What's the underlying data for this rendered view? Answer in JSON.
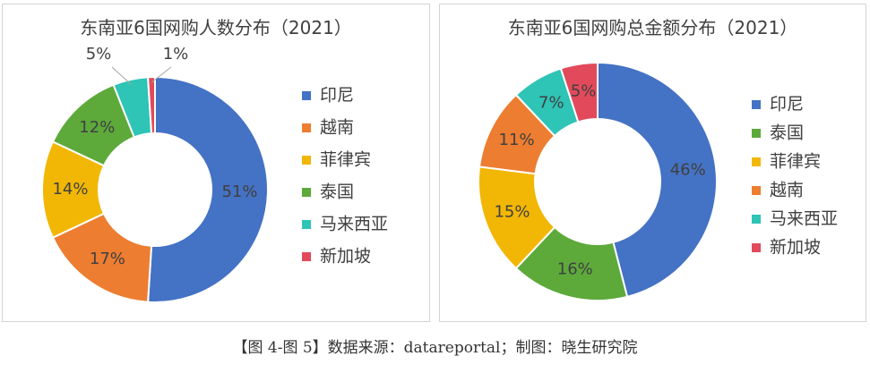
{
  "chart_data": [
    {
      "type": "pie",
      "donut": true,
      "title": "东南亚6国网购人数分布（2021）",
      "categories": [
        "印尼",
        "越南",
        "菲律宾",
        "泰国",
        "马来西亚",
        "新加坡"
      ],
      "values": [
        51,
        17,
        14,
        12,
        5,
        1
      ],
      "value_labels": [
        "51%",
        "17%",
        "14%",
        "12%",
        "5%",
        "1%"
      ],
      "colors": [
        "#4472C4",
        "#ED7D31",
        "#F2B705",
        "#5DAA3B",
        "#2EC4B6",
        "#E24A5B"
      ],
      "legend_position": "right"
    },
    {
      "type": "pie",
      "donut": true,
      "title": "东南亚6国网购总金额分布（2021）",
      "categories": [
        "印尼",
        "泰国",
        "菲律宾",
        "越南",
        "马来西亚",
        "新加坡"
      ],
      "values": [
        46,
        16,
        15,
        11,
        7,
        5
      ],
      "value_labels": [
        "46%",
        "16%",
        "15%",
        "11%",
        "7%",
        "5%"
      ],
      "colors": [
        "#4472C4",
        "#5DAA3B",
        "#F2B705",
        "#ED7D31",
        "#2EC4B6",
        "#E24A5B"
      ],
      "legend_position": "right"
    }
  ],
  "caption": "【图 4-图 5】数据来源：datareportal；制图：晓生研究院"
}
